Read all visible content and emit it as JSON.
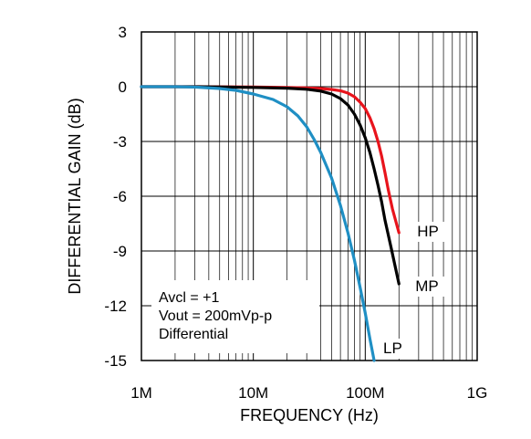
{
  "chart_data": {
    "type": "line",
    "xlabel": "FREQUENCY (Hz)",
    "ylabel": "DIFFERENTIAL GAIN (dB)",
    "x_scale": "log",
    "xlim": [
      1000000,
      1000000000
    ],
    "ylim": [
      -15,
      3
    ],
    "x_ticks": [
      {
        "value": 1000000,
        "label": "1M"
      },
      {
        "value": 10000000,
        "label": "10M"
      },
      {
        "value": 100000000,
        "label": "100M"
      },
      {
        "value": 1000000000,
        "label": "1G"
      }
    ],
    "y_ticks": [
      {
        "value": 3,
        "label": "3"
      },
      {
        "value": 0,
        "label": "0"
      },
      {
        "value": -3,
        "label": "-3"
      },
      {
        "value": -6,
        "label": "-6"
      },
      {
        "value": -9,
        "label": "-9"
      },
      {
        "value": -12,
        "label": "-12"
      },
      {
        "value": -15,
        "label": "-15"
      }
    ],
    "grid": true,
    "annotations": [
      "Avcl = +1",
      "Vout = 200mVp-p",
      "Differential"
    ],
    "series": [
      {
        "name": "HP",
        "color": "#e8141c",
        "points": [
          [
            1000000,
            0
          ],
          [
            3000000,
            0
          ],
          [
            10000000,
            -0.02
          ],
          [
            20000000,
            -0.04
          ],
          [
            30000000,
            -0.07
          ],
          [
            40000000,
            -0.1
          ],
          [
            50000000,
            -0.15
          ],
          [
            60000000,
            -0.22
          ],
          [
            70000000,
            -0.35
          ],
          [
            80000000,
            -0.55
          ],
          [
            90000000,
            -0.85
          ],
          [
            100000000,
            -1.2
          ],
          [
            110000000,
            -1.7
          ],
          [
            120000000,
            -2.3
          ],
          [
            130000000,
            -3.0
          ],
          [
            140000000,
            -3.8
          ],
          [
            150000000,
            -4.7
          ],
          [
            160000000,
            -5.6
          ],
          [
            175000000,
            -6.7
          ],
          [
            200000000,
            -8.0
          ]
        ]
      },
      {
        "name": "MP",
        "color": "#000000",
        "points": [
          [
            1000000,
            0
          ],
          [
            3000000,
            0
          ],
          [
            10000000,
            -0.04
          ],
          [
            20000000,
            -0.08
          ],
          [
            30000000,
            -0.14
          ],
          [
            40000000,
            -0.24
          ],
          [
            50000000,
            -0.4
          ],
          [
            60000000,
            -0.65
          ],
          [
            70000000,
            -1.0
          ],
          [
            80000000,
            -1.5
          ],
          [
            90000000,
            -2.1
          ],
          [
            100000000,
            -2.8
          ],
          [
            110000000,
            -3.6
          ],
          [
            120000000,
            -4.5
          ],
          [
            130000000,
            -5.4
          ],
          [
            140000000,
            -6.3
          ],
          [
            150000000,
            -7.3
          ],
          [
            170000000,
            -8.8
          ],
          [
            200000000,
            -10.8
          ]
        ]
      },
      {
        "name": "LP",
        "color": "#1f8fc4",
        "points": [
          [
            1000000,
            0
          ],
          [
            2000000,
            0
          ],
          [
            3000000,
            -0.02
          ],
          [
            5000000,
            -0.1
          ],
          [
            7000000,
            -0.2
          ],
          [
            10000000,
            -0.4
          ],
          [
            15000000,
            -0.7
          ],
          [
            20000000,
            -1.1
          ],
          [
            25000000,
            -1.6
          ],
          [
            30000000,
            -2.2
          ],
          [
            35000000,
            -2.9
          ],
          [
            40000000,
            -3.6
          ],
          [
            50000000,
            -5.0
          ],
          [
            60000000,
            -6.5
          ],
          [
            70000000,
            -8.0
          ],
          [
            80000000,
            -9.5
          ],
          [
            90000000,
            -11.0
          ],
          [
            100000000,
            -12.4
          ],
          [
            110000000,
            -13.8
          ],
          [
            120000000,
            -15.0
          ]
        ]
      }
    ]
  }
}
